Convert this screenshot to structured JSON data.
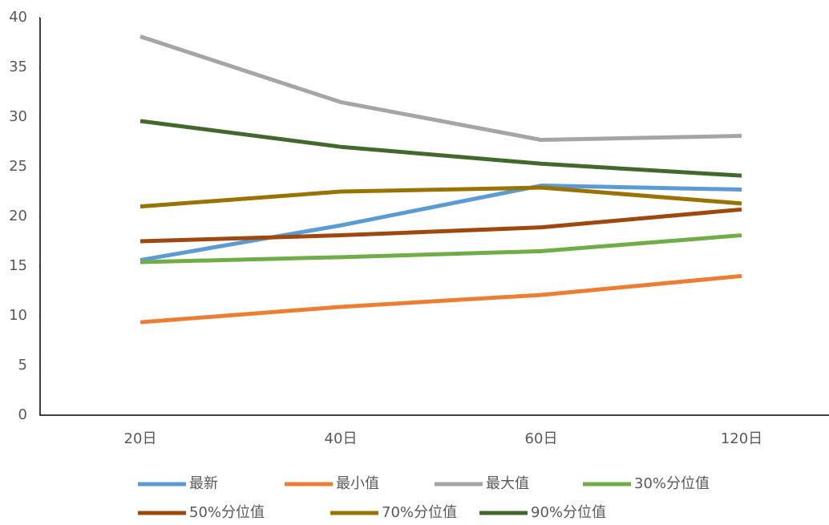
{
  "chart_data": {
    "type": "line",
    "categories": [
      "20日",
      "40日",
      "60日",
      "120日"
    ],
    "series": [
      {
        "name": "最新",
        "color": "#5b9bd5",
        "values": [
          15.6,
          19.1,
          23.1,
          22.7
        ]
      },
      {
        "name": "最小值",
        "color": "#ed7d31",
        "values": [
          9.35,
          10.9,
          12.1,
          14.0
        ]
      },
      {
        "name": "最大值",
        "color": "#a5a5a5",
        "values": [
          38.1,
          31.5,
          27.7,
          28.1
        ]
      },
      {
        "name": "30%分位值",
        "color": "#70ad47",
        "values": [
          15.4,
          15.9,
          16.5,
          18.1
        ]
      },
      {
        "name": "50%分位值",
        "color": "#9e480e",
        "values": [
          17.5,
          18.1,
          18.9,
          20.7
        ]
      },
      {
        "name": "70%分位值",
        "color": "#997300",
        "values": [
          21.0,
          22.5,
          22.9,
          21.3
        ]
      },
      {
        "name": "90%分位值",
        "color": "#43682b",
        "values": [
          29.6,
          27.0,
          25.3,
          24.1
        ]
      }
    ],
    "ylim": [
      0,
      40
    ],
    "yticks": [
      0,
      5,
      10,
      15,
      20,
      25,
      30,
      35,
      40
    ],
    "grid": false
  }
}
